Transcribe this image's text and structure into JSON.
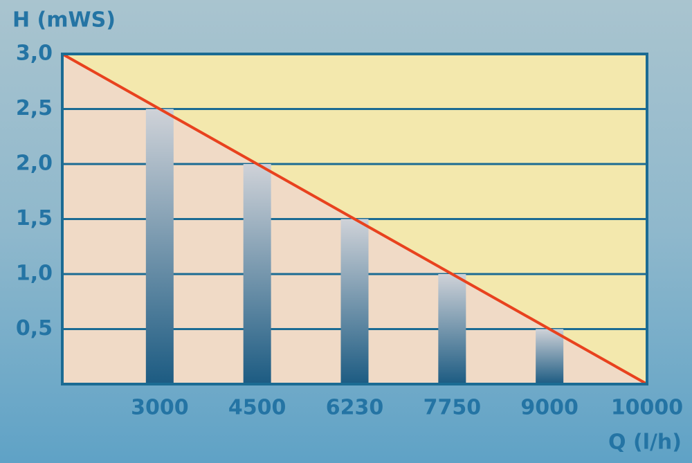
{
  "chart_data": {
    "type": "bar",
    "y_label": "H (mWS)",
    "x_label": "Q (l/h)",
    "categories": [
      null,
      "3000",
      "4500",
      "6230",
      "7750",
      "9000",
      "10000"
    ],
    "series": [
      {
        "type": "bar",
        "color": "#1c5b82",
        "values": [
          null,
          2.5,
          2.0,
          1.5,
          1.0,
          0.5,
          null
        ]
      },
      {
        "type": "line",
        "color": "#e8421e",
        "values": [
          3.0,
          2.5,
          2.0,
          1.5,
          1.0,
          0.5,
          0
        ]
      }
    ],
    "fill_above": "#f3e8ad",
    "fill_below": "#f0dac6",
    "ylim": [
      0,
      3
    ],
    "yticks": [
      {
        "value": 0.5,
        "label": "0,5"
      },
      {
        "value": 1,
        "label": "1,0"
      },
      {
        "value": 1.5,
        "label": "1,5"
      },
      {
        "value": 2,
        "label": "2,0"
      },
      {
        "value": 2.5,
        "label": "2,5"
      },
      {
        "value": 3,
        "label": "3,0"
      }
    ],
    "grid": true
  }
}
